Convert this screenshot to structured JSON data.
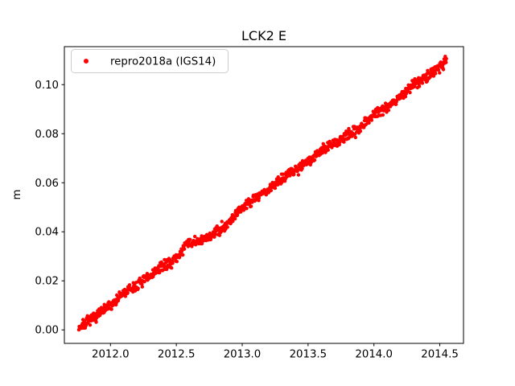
{
  "chart_data": {
    "type": "scatter",
    "title": "LCK2 E",
    "xlabel": "",
    "ylabel": "m",
    "xlim": [
      2011.65,
      2014.68
    ],
    "ylim": [
      -0.0055,
      0.1155
    ],
    "grid": false,
    "xticks": {
      "values": [
        2012.0,
        2012.5,
        2013.0,
        2013.5,
        2014.0,
        2014.5
      ],
      "labels": [
        "2012.0",
        "2012.5",
        "2013.0",
        "2013.5",
        "2014.0",
        "2014.5"
      ]
    },
    "yticks": {
      "values": [
        0.0,
        0.02,
        0.04,
        0.06,
        0.08,
        0.1
      ],
      "labels": [
        "0.00",
        "0.02",
        "0.04",
        "0.06",
        "0.08",
        "0.10"
      ]
    },
    "axes": {
      "frame_color": "#000000",
      "tick_color": "#000000",
      "text_color": "#000000",
      "background": "#ffffff",
      "tick_length": 3.5
    },
    "legend": {
      "position": "upper left",
      "background": "#ffffff",
      "border_color": "#cccccc"
    },
    "series": [
      {
        "name": "repro2018a (IGS14)",
        "color": "#ff0000",
        "marker": "point",
        "marker_radius": 2.2,
        "x_start": 2011.76,
        "x_end": 2014.55,
        "point_count": 980,
        "noise_amplitude": 0.0021,
        "seed": 7,
        "trend_anchors": [
          [
            2011.76,
            0.001
          ],
          [
            2011.82,
            0.003
          ],
          [
            2011.9,
            0.006
          ],
          [
            2012.0,
            0.01
          ],
          [
            2012.1,
            0.015
          ],
          [
            2012.2,
            0.018
          ],
          [
            2012.3,
            0.022
          ],
          [
            2012.4,
            0.026
          ],
          [
            2012.5,
            0.029
          ],
          [
            2012.58,
            0.035
          ],
          [
            2012.68,
            0.036
          ],
          [
            2012.78,
            0.039
          ],
          [
            2012.9,
            0.044
          ],
          [
            2013.0,
            0.05
          ],
          [
            2013.1,
            0.054
          ],
          [
            2013.2,
            0.057
          ],
          [
            2013.3,
            0.062
          ],
          [
            2013.4,
            0.065
          ],
          [
            2013.5,
            0.069
          ],
          [
            2013.6,
            0.073
          ],
          [
            2013.7,
            0.076
          ],
          [
            2013.8,
            0.079
          ],
          [
            2013.9,
            0.083
          ],
          [
            2014.0,
            0.088
          ],
          [
            2014.1,
            0.091
          ],
          [
            2014.2,
            0.095
          ],
          [
            2014.3,
            0.1
          ],
          [
            2014.4,
            0.103
          ],
          [
            2014.48,
            0.107
          ],
          [
            2014.55,
            0.11
          ]
        ]
      }
    ]
  }
}
